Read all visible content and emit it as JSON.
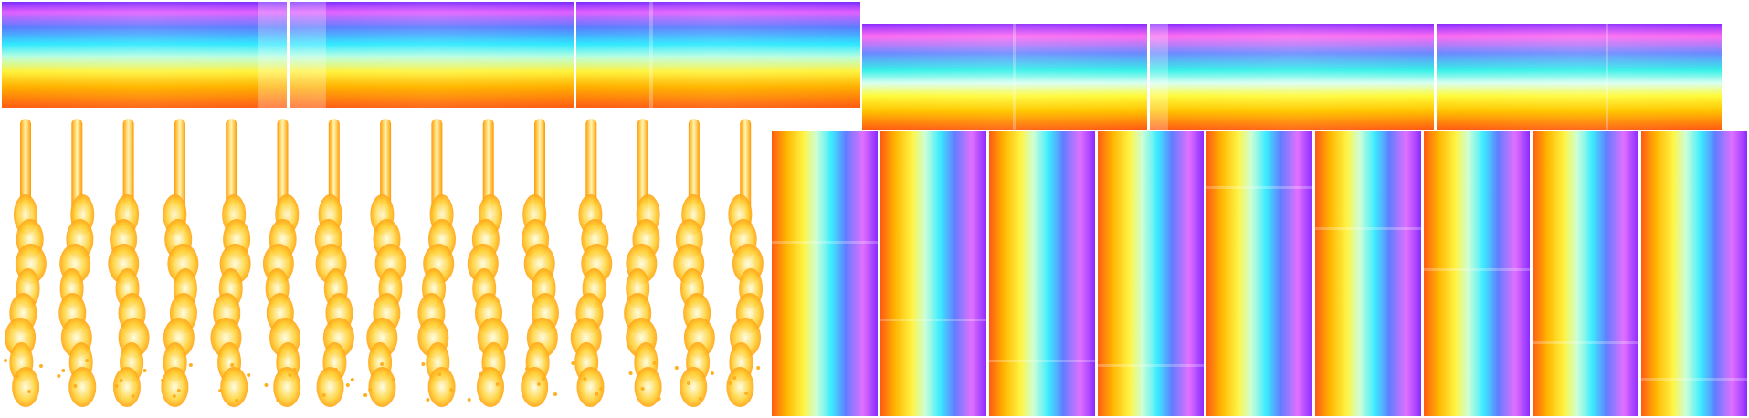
{
  "sprite_sheet": {
    "tiles_horizontal_large": 3,
    "tiles_horizontal_small": 3,
    "flame_frames": 15,
    "tiles_vertical": 9,
    "colors": {
      "flame_core": "#fffde0",
      "flame_mid": "#ffd23a",
      "flame_edge": "#ff8a00",
      "background": "#ffffff"
    }
  }
}
